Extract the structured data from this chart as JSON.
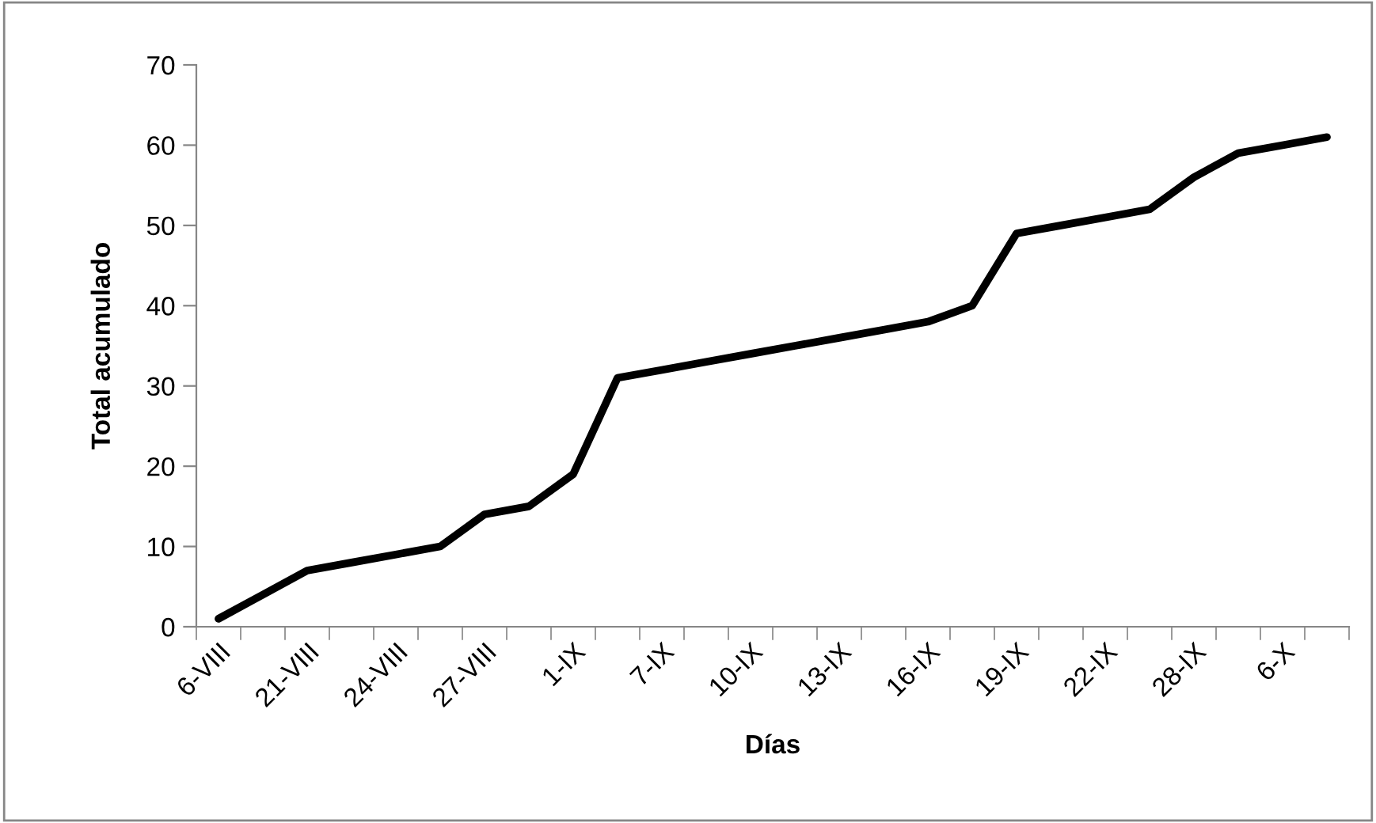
{
  "chart_data": {
    "type": "line",
    "xlabel": "Días",
    "ylabel": "Total acumulado",
    "categories": [
      "6-VIII",
      null,
      "21-VIII",
      null,
      "24-VIII",
      null,
      "27-VIII",
      null,
      "1-IX",
      null,
      "7-IX",
      null,
      "10-IX",
      null,
      "13-IX",
      null,
      "16-IX",
      null,
      "19-IX",
      null,
      "22-IX",
      null,
      "28-IX",
      null,
      "6-X",
      null
    ],
    "series": [
      {
        "color": "#000000",
        "values": [
          1,
          4,
          7,
          8,
          9,
          10,
          14,
          15,
          19,
          31,
          32,
          33,
          34,
          35,
          36,
          37,
          38,
          40,
          49,
          50,
          51,
          52,
          56,
          59,
          60,
          61
        ]
      }
    ],
    "ylim": [
      0,
      70
    ],
    "yticks": [
      0,
      10,
      20,
      30,
      40,
      50,
      60,
      70
    ],
    "grid": false,
    "legend": false,
    "marker": "none",
    "line_style": "solid"
  }
}
